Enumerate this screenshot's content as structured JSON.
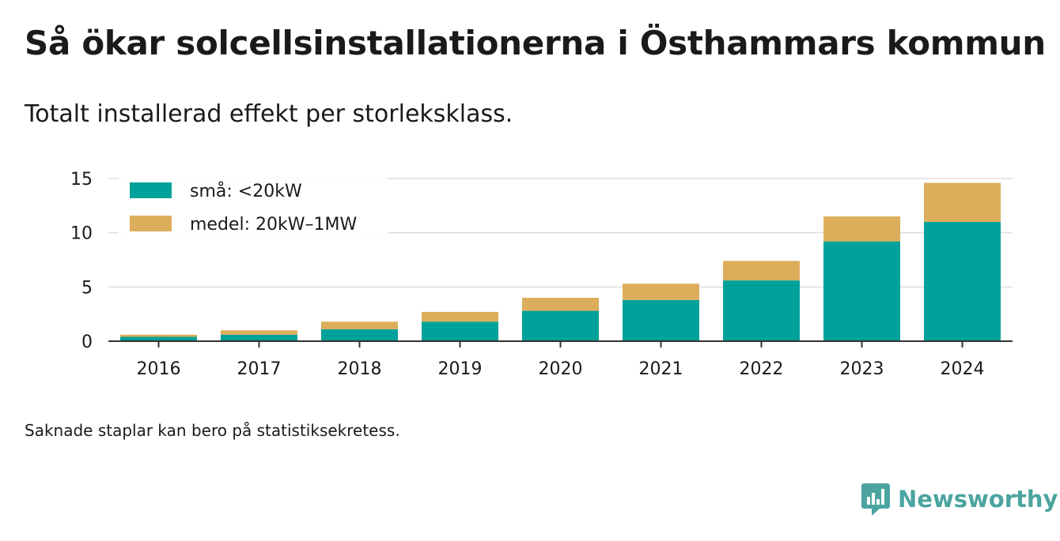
{
  "title": "Så ökar solcellsinstallationerna i Östhammars kommun",
  "subtitle": "Totalt installerad effekt per storleksklass.",
  "note": "Saknade staplar kan bero på statistiksekretess.",
  "brand": {
    "name": "Newsworthy",
    "icon": "newsworthy-logo-icon",
    "color": "#4ba49f"
  },
  "chart_data": {
    "type": "bar",
    "stacked": true,
    "categories": [
      "2016",
      "2017",
      "2018",
      "2019",
      "2020",
      "2021",
      "2022",
      "2023",
      "2024"
    ],
    "series": [
      {
        "name": "små: <20kW",
        "color": "#00a19a",
        "values": [
          0.4,
          0.6,
          1.1,
          1.8,
          2.8,
          3.8,
          5.6,
          9.2,
          11.0
        ]
      },
      {
        "name": "medel: 20kW–1MW",
        "color": "#dcae5b",
        "values": [
          0.2,
          0.4,
          0.7,
          0.9,
          1.2,
          1.5,
          1.8,
          2.3,
          3.6
        ]
      }
    ],
    "ylim": [
      0,
      15
    ],
    "yticks": [
      "0",
      "5",
      "10",
      "15"
    ],
    "grid": true,
    "legend": "top-left",
    "xlabel": "",
    "ylabel": ""
  }
}
